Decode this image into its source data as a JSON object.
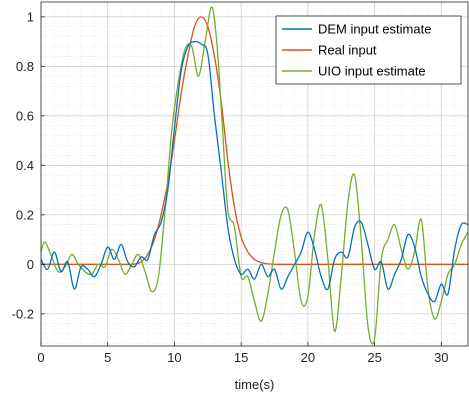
{
  "chart_data": {
    "type": "line",
    "title": "",
    "xlabel": "time(s)",
    "ylabel": "",
    "xlim": [
      0,
      32
    ],
    "ylim": [
      -0.33,
      1.06
    ],
    "x_ticks": [
      0,
      5,
      10,
      15,
      20,
      25,
      30
    ],
    "x_tick_labels": [
      "0",
      "5",
      "10",
      "15",
      "20",
      "25",
      "30"
    ],
    "y_ticks": [
      -0.2,
      0,
      0.2,
      0.4,
      0.6,
      0.8,
      1
    ],
    "y_tick_labels": [
      "-0.2",
      "0",
      "0.2",
      "0.4",
      "0.6",
      "0.8",
      "1"
    ],
    "grid": true,
    "minor_grid": true,
    "legend_position": "top-right",
    "series": [
      {
        "name": "DEM input estimate",
        "color": "#0072BD",
        "x": [
          0,
          0.5,
          1,
          1.5,
          2,
          2.5,
          3,
          3.5,
          4,
          4.5,
          5,
          5.5,
          6,
          6.5,
          7,
          7.5,
          8,
          8.5,
          9,
          9.5,
          10,
          10.5,
          11,
          11.5,
          12,
          12.5,
          13,
          13.5,
          14,
          14.5,
          15,
          15.5,
          16,
          16.5,
          17,
          17.5,
          18,
          18.5,
          19,
          19.5,
          20,
          20.5,
          21,
          21.5,
          22,
          22.5,
          23,
          23.5,
          24,
          24.5,
          25,
          25.5,
          26,
          26.5,
          27,
          27.5,
          28,
          28.5,
          29,
          29.5,
          30,
          30.5,
          31,
          31.5,
          32
        ],
        "y": [
          0.02,
          -0.02,
          0.05,
          -0.03,
          0.01,
          -0.1,
          -0.01,
          -0.02,
          -0.05,
          0.0,
          0.07,
          0.02,
          0.08,
          0.01,
          -0.01,
          0.03,
          0.02,
          0.12,
          0.17,
          0.3,
          0.55,
          0.78,
          0.88,
          0.9,
          0.89,
          0.85,
          0.6,
          0.38,
          0.15,
          0.02,
          -0.04,
          -0.02,
          -0.06,
          0.0,
          -0.05,
          -0.02,
          -0.1,
          -0.05,
          0.0,
          0.05,
          0.13,
          0.06,
          -0.05,
          -0.1,
          0.02,
          0.05,
          0.03,
          0.15,
          0.17,
          0.08,
          -0.02,
          0.01,
          -0.1,
          -0.04,
          0.02,
          0.12,
          0.07,
          -0.05,
          -0.12,
          -0.15,
          -0.08,
          -0.12,
          0.06,
          0.16,
          0.16
        ]
      },
      {
        "name": "Real input",
        "color": "#D95319",
        "x": [
          0,
          1,
          2,
          3,
          4,
          5,
          6,
          7,
          7.5,
          8,
          8.5,
          9,
          9.5,
          10,
          10.5,
          11,
          11.5,
          12,
          12.5,
          13,
          13.5,
          14,
          14.5,
          15,
          15.5,
          16,
          16.5,
          17,
          18,
          20,
          22,
          24,
          26,
          28,
          30,
          32
        ],
        "y": [
          0,
          0,
          0,
          0,
          0,
          0,
          0,
          0.001,
          0.01,
          0.04,
          0.1,
          0.2,
          0.33,
          0.5,
          0.69,
          0.84,
          0.96,
          1.0,
          0.96,
          0.84,
          0.66,
          0.42,
          0.23,
          0.11,
          0.05,
          0.02,
          0.007,
          0.002,
          0,
          0,
          0,
          0,
          0,
          0,
          0,
          0
        ]
      },
      {
        "name": "UIO input estimate",
        "color": "#77AC30",
        "x": [
          0,
          0.3,
          0.8,
          1.3,
          1.8,
          2.3,
          2.8,
          3.3,
          3.8,
          4.3,
          4.8,
          5.3,
          5.8,
          6.3,
          6.8,
          7.3,
          7.8,
          8.3,
          8.8,
          9.3,
          9.8,
          10.3,
          10.8,
          11.3,
          11.8,
          12.3,
          12.8,
          13.2,
          13.6,
          14.0,
          14.5,
          15.0,
          15.5,
          16.0,
          16.5,
          17.0,
          17.5,
          18.0,
          18.5,
          19.0,
          19.5,
          20.0,
          20.5,
          21.0,
          21.5,
          22.0,
          22.5,
          23.0,
          23.5,
          24.0,
          24.5,
          25.0,
          25.5,
          26.0,
          26.5,
          27.0,
          27.5,
          28.0,
          28.5,
          29.0,
          29.5,
          30.0,
          30.5,
          31.0,
          31.5,
          32.0
        ],
        "y": [
          0.05,
          0.09,
          0.03,
          -0.03,
          -0.01,
          0.04,
          0.0,
          -0.03,
          -0.04,
          0.0,
          -0.01,
          0.06,
          0.02,
          -0.04,
          0.0,
          0.04,
          -0.03,
          -0.11,
          -0.05,
          0.22,
          0.54,
          0.74,
          0.87,
          0.88,
          0.76,
          0.9,
          1.04,
          0.88,
          0.55,
          0.22,
          0.15,
          -0.05,
          -0.05,
          -0.15,
          -0.23,
          -0.12,
          0.05,
          0.2,
          0.22,
          0.05,
          -0.15,
          -0.13,
          0.12,
          0.24,
          0.02,
          -0.27,
          -0.05,
          0.25,
          0.36,
          0.1,
          -0.25,
          -0.3,
          0.02,
          0.1,
          0.16,
          0.06,
          -0.02,
          0.05,
          0.18,
          -0.1,
          -0.22,
          -0.15,
          -0.04,
          0.0,
          0.08,
          0.13
        ]
      }
    ]
  }
}
